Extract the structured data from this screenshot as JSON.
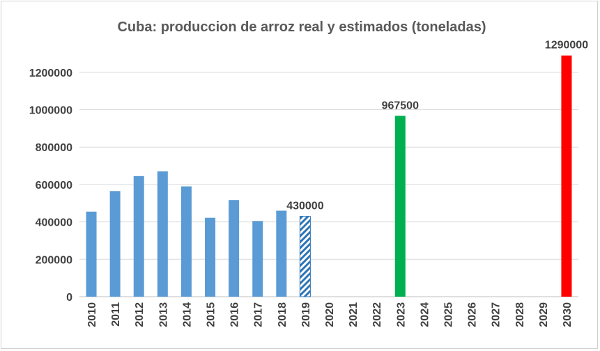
{
  "chart_data": {
    "type": "bar",
    "title": "Cuba: produccion de arroz real y estimados (toneladas)",
    "xlabel": "",
    "ylabel": "",
    "ylim": [
      0,
      1300000
    ],
    "yticks": [
      0,
      200000,
      400000,
      600000,
      800000,
      1000000,
      1200000
    ],
    "ytick_labels": [
      "0",
      "200000",
      "400000",
      "600000",
      "800000",
      "1000000",
      "1200000"
    ],
    "grid": true,
    "legend": "none",
    "categories": [
      "2010",
      "2011",
      "2012",
      "2013",
      "2014",
      "2015",
      "2016",
      "2017",
      "2018",
      "2019",
      "2020",
      "2021",
      "2022",
      "2023",
      "2024",
      "2025",
      "2026",
      "2027",
      "2028",
      "2029",
      "2030"
    ],
    "values": [
      455000,
      565000,
      645000,
      670000,
      590000,
      422000,
      517000,
      405000,
      460000,
      430000,
      null,
      null,
      null,
      967500,
      null,
      null,
      null,
      null,
      null,
      null,
      1290000
    ],
    "bar_styles": [
      "solid",
      "solid",
      "solid",
      "solid",
      "solid",
      "solid",
      "solid",
      "solid",
      "solid",
      "hatched",
      null,
      null,
      null,
      "solid",
      null,
      null,
      null,
      null,
      null,
      null,
      "solid"
    ],
    "bar_colors": [
      "#5b9bd5",
      "#5b9bd5",
      "#5b9bd5",
      "#5b9bd5",
      "#5b9bd5",
      "#5b9bd5",
      "#5b9bd5",
      "#5b9bd5",
      "#5b9bd5",
      "#2e75b6",
      null,
      null,
      null,
      "#00b050",
      null,
      null,
      null,
      null,
      null,
      null,
      "#ff0000"
    ],
    "data_labels": [
      "",
      "",
      "",
      "",
      "",
      "",
      "",
      "",
      "",
      "430000",
      "",
      "",
      "",
      "967500",
      "",
      "",
      "",
      "",
      "",
      "",
      "1290000"
    ]
  }
}
